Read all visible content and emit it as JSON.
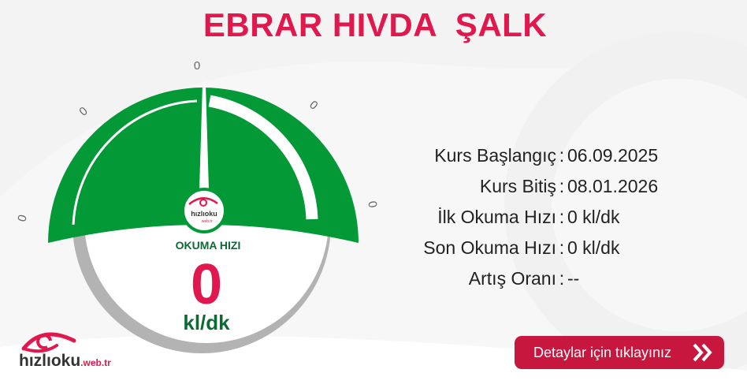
{
  "header": {
    "title": "EBRAR HIVDA  ŞALK"
  },
  "gauge": {
    "tick_labels": [
      "0",
      "0",
      "0",
      "0",
      "0"
    ],
    "title": "OKUMA HIZI",
    "value": "0",
    "unit": "kl/dk",
    "hub_logo": "hızlıoku",
    "hub_logo_sub": ".web.tr",
    "colors": {
      "arc": "#029936",
      "track": "#b3b3b3",
      "value": "#e0184d",
      "label": "#0a6b33"
    }
  },
  "info": {
    "rows": [
      {
        "label": "Kurs Başlangıç",
        "value": "06.09.2025"
      },
      {
        "label": "Kurs Bitiş",
        "value": "08.01.2026"
      },
      {
        "label": "İlk Okuma Hızı",
        "value": "0 kl/dk"
      },
      {
        "label": "Son Okuma Hızı",
        "value": "0 kl/dk"
      },
      {
        "label": "Artış Oranı",
        "value": "--"
      }
    ],
    "separator": ":"
  },
  "details_button": {
    "label": "Detaylar için tıklayınız",
    "icon": "double-chevron-right-icon"
  },
  "brand": {
    "name": "hızlıoku",
    "suffix": ".web.tr",
    "registered": "®",
    "accent": "#e0184d"
  }
}
